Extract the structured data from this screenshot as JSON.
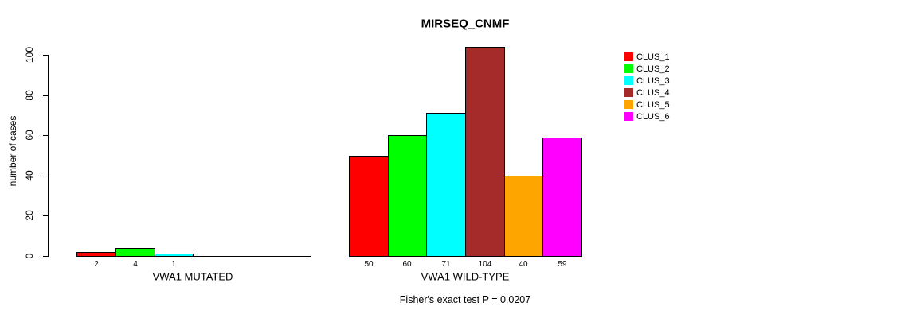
{
  "chart_data": {
    "type": "bar",
    "title": "MIRSEQ_CNMF",
    "ylabel": "number of cases",
    "xlabel": "",
    "ylim": [
      0,
      100
    ],
    "yticks": [
      0,
      20,
      40,
      60,
      80,
      100
    ],
    "grid": false,
    "groups": [
      {
        "label": "VWA1 MUTATED",
        "categories": [
          "CLUS_1",
          "CLUS_2",
          "CLUS_3",
          "CLUS_4",
          "CLUS_5",
          "CLUS_6"
        ],
        "values": [
          2,
          4,
          1,
          0,
          0,
          0
        ],
        "bar_labels": [
          "2",
          "4",
          "1",
          "",
          "",
          ""
        ]
      },
      {
        "label": "VWA1 WILD-TYPE",
        "categories": [
          "CLUS_1",
          "CLUS_2",
          "CLUS_3",
          "CLUS_4",
          "CLUS_5",
          "CLUS_6"
        ],
        "values": [
          50,
          60,
          71,
          104,
          40,
          59
        ],
        "bar_labels": [
          "50",
          "60",
          "71",
          "104",
          "40",
          "59"
        ]
      }
    ],
    "legend": {
      "position": "right",
      "items": [
        {
          "label": "CLUS_1",
          "color": "#FF0000"
        },
        {
          "label": "CLUS_2",
          "color": "#00FF00"
        },
        {
          "label": "CLUS_3",
          "color": "#00FFFF"
        },
        {
          "label": "CLUS_4",
          "color": "#A52A2A"
        },
        {
          "label": "CLUS_5",
          "color": "#FFA500"
        },
        {
          "label": "CLUS_6",
          "color": "#FF00FF"
        }
      ]
    },
    "annotation": "Fisher's exact test P = 0.0207"
  },
  "colors": {
    "background": "#FFFFFF",
    "axis": "#000000",
    "bar_border": "#000000",
    "text": "#000000"
  }
}
